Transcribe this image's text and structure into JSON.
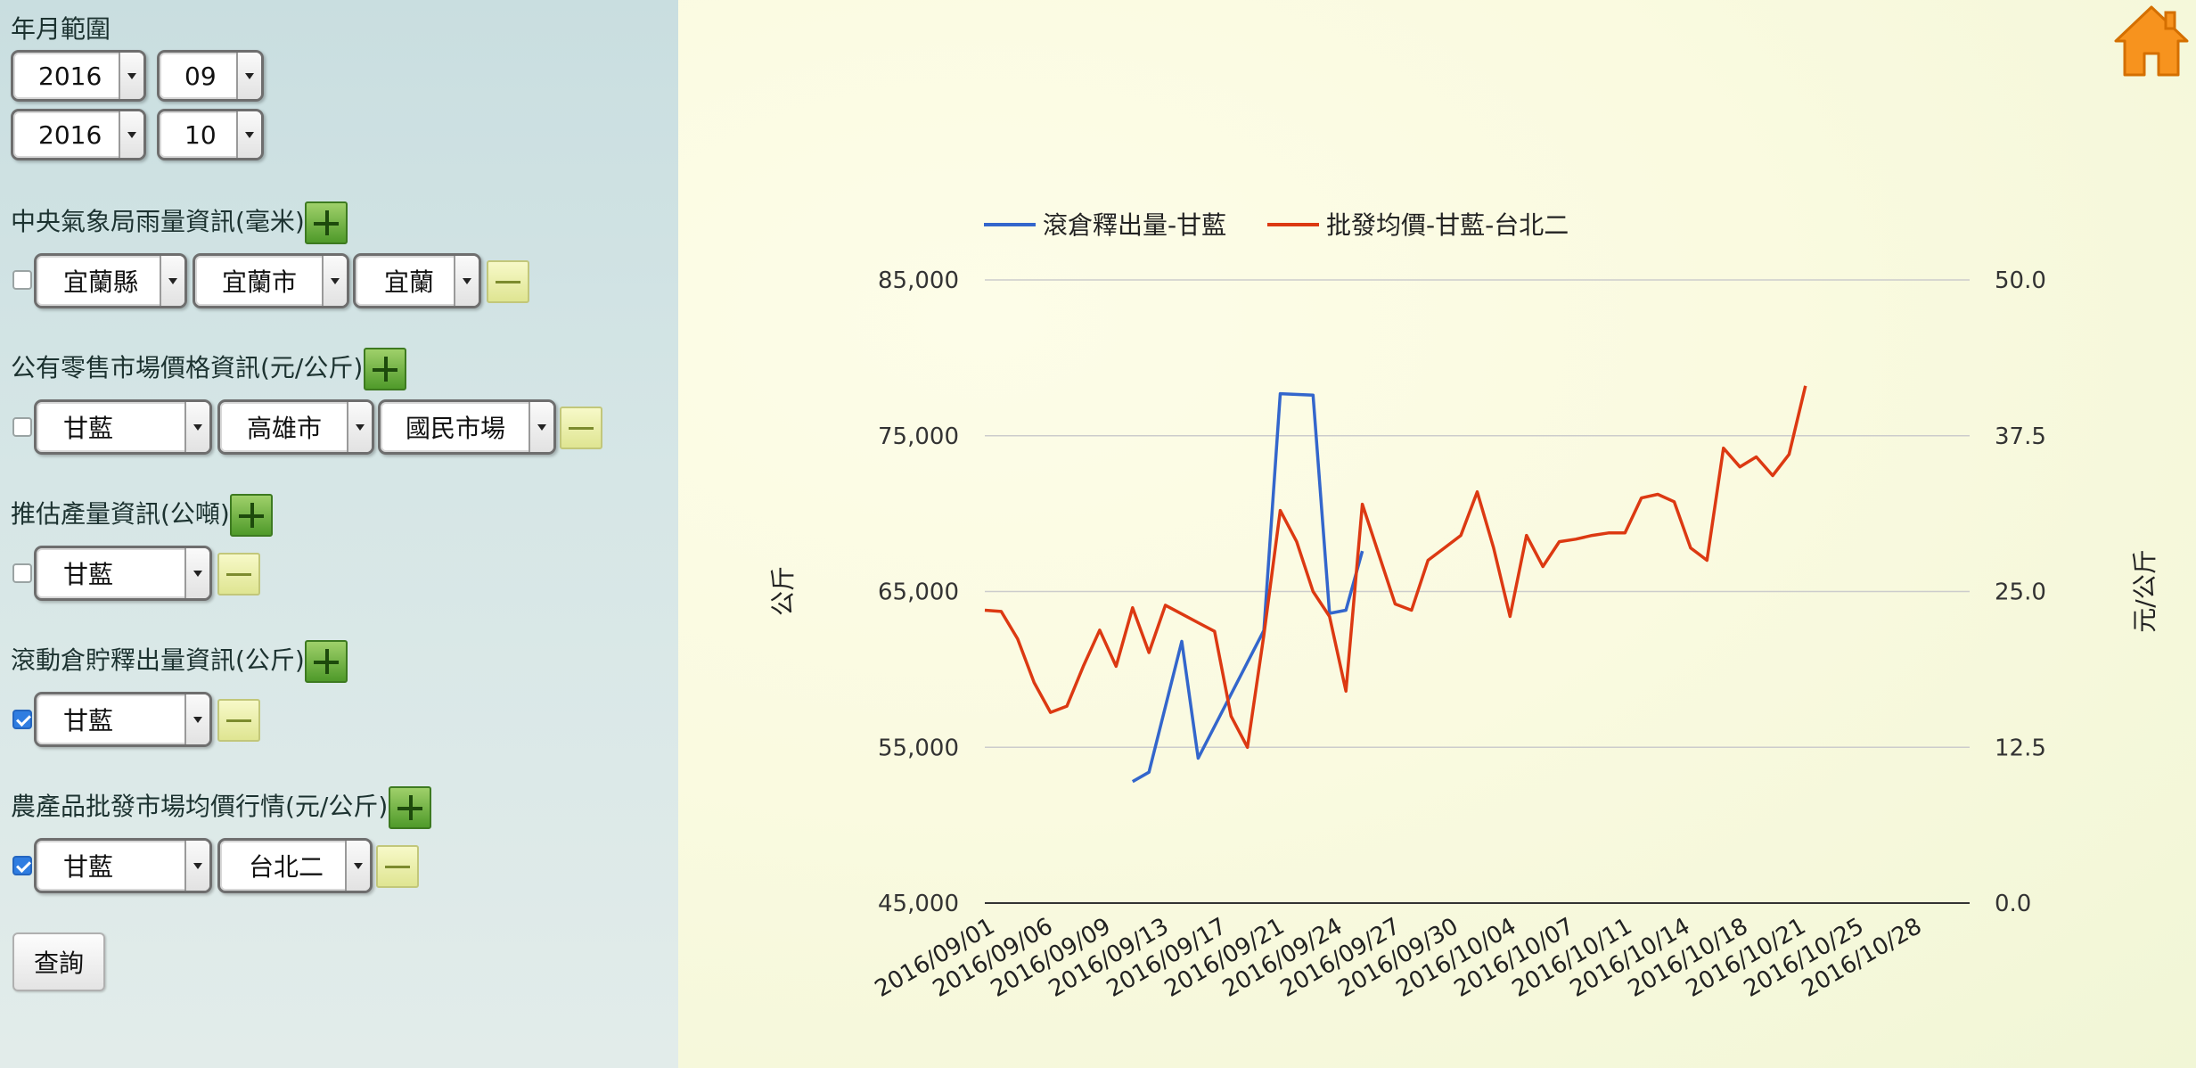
{
  "sidebar": {
    "date_range": {
      "label": "年月範圍",
      "start_year": "2016",
      "start_month": "09",
      "end_year": "2016",
      "end_month": "10"
    },
    "rainfall": {
      "label": "中央氣象局雨量資訊(毫米)",
      "checked": false,
      "county": "宜蘭縣",
      "city": "宜蘭市",
      "station": "宜蘭"
    },
    "retail": {
      "label": "公有零售市場價格資訊(元/公斤)",
      "checked": false,
      "crop": "甘藍",
      "city": "高雄市",
      "market": "國民市場"
    },
    "production": {
      "label": "推估產量資訊(公噸)",
      "checked": false,
      "crop": "甘藍"
    },
    "storage": {
      "label": "滾動倉貯釋出量資訊(公斤)",
      "checked": true,
      "crop": "甘藍"
    },
    "wholesale": {
      "label": "農產品批發市場均價行情(元/公斤)",
      "checked": true,
      "crop": "甘藍",
      "market": "台北二"
    },
    "query_label": "查詢"
  },
  "colors": {
    "series_release": "#3366cc",
    "series_price": "#dc3912"
  },
  "chart_data": {
    "type": "line",
    "legend_position": "top-left",
    "left_axis_label": "公斤",
    "right_axis_label": "元/公斤",
    "left_ylim": [
      45000,
      85000
    ],
    "right_ylim": [
      0,
      50
    ],
    "left_ticks": [
      "45,000",
      "55,000",
      "65,000",
      "75,000",
      "85,000"
    ],
    "right_ticks": [
      "0.0",
      "12.5",
      "25.0",
      "37.5",
      "50.0"
    ],
    "x_tick_labels": [
      "2016/09/01",
      "2016/09/06",
      "2016/09/09",
      "2016/09/13",
      "2016/09/17",
      "2016/09/21",
      "2016/09/24",
      "2016/09/27",
      "2016/09/30",
      "2016/10/04",
      "2016/10/07",
      "2016/10/11",
      "2016/10/14",
      "2016/10/18",
      "2016/10/21",
      "2016/10/25",
      "2016/10/28"
    ],
    "series": [
      {
        "name": "滾倉釋出量-甘藍",
        "axis": "left",
        "color": "#3366cc",
        "points": [
          [
            9,
            52800
          ],
          [
            10,
            53400
          ],
          [
            12,
            61800
          ],
          [
            13,
            54300
          ],
          [
            17,
            62500
          ],
          [
            18,
            77700
          ],
          [
            20,
            77600
          ],
          [
            21,
            63600
          ],
          [
            22,
            63800
          ],
          [
            23,
            67600
          ]
        ]
      },
      {
        "name": "批發均價-甘藍-台北二",
        "axis": "right",
        "color": "#dc3912",
        "points": [
          [
            0,
            23.5
          ],
          [
            1,
            23.4
          ],
          [
            2,
            21.2
          ],
          [
            3,
            17.7
          ],
          [
            4,
            15.3
          ],
          [
            5,
            15.8
          ],
          [
            6,
            19.0
          ],
          [
            7,
            21.9
          ],
          [
            8,
            19.0
          ],
          [
            9,
            23.7
          ],
          [
            10,
            20.1
          ],
          [
            11,
            23.9
          ],
          [
            12,
            23.2
          ],
          [
            13,
            22.5
          ],
          [
            14,
            21.8
          ],
          [
            15,
            15.0
          ],
          [
            16,
            12.5
          ],
          [
            17,
            21.5
          ],
          [
            18,
            31.5
          ],
          [
            19,
            29.0
          ],
          [
            20,
            25.0
          ],
          [
            21,
            23.0
          ],
          [
            22,
            17.0
          ],
          [
            23,
            32.0
          ],
          [
            24,
            28.0
          ],
          [
            25,
            24.0
          ],
          [
            26,
            23.5
          ],
          [
            27,
            27.5
          ],
          [
            28,
            28.5
          ],
          [
            29,
            29.5
          ],
          [
            30,
            33.0
          ],
          [
            31,
            28.5
          ],
          [
            32,
            23.0
          ],
          [
            33,
            29.5
          ],
          [
            34,
            27.0
          ],
          [
            35,
            29.0
          ],
          [
            36,
            29.2
          ],
          [
            37,
            29.5
          ],
          [
            38,
            29.7
          ],
          [
            39,
            29.7
          ],
          [
            40,
            32.5
          ],
          [
            41,
            32.8
          ],
          [
            42,
            32.2
          ],
          [
            43,
            28.5
          ],
          [
            44,
            27.5
          ],
          [
            45,
            36.5
          ],
          [
            46,
            35.0
          ],
          [
            47,
            35.8
          ],
          [
            48,
            34.3
          ],
          [
            49,
            36.0
          ],
          [
            50,
            41.5
          ]
        ]
      }
    ]
  }
}
